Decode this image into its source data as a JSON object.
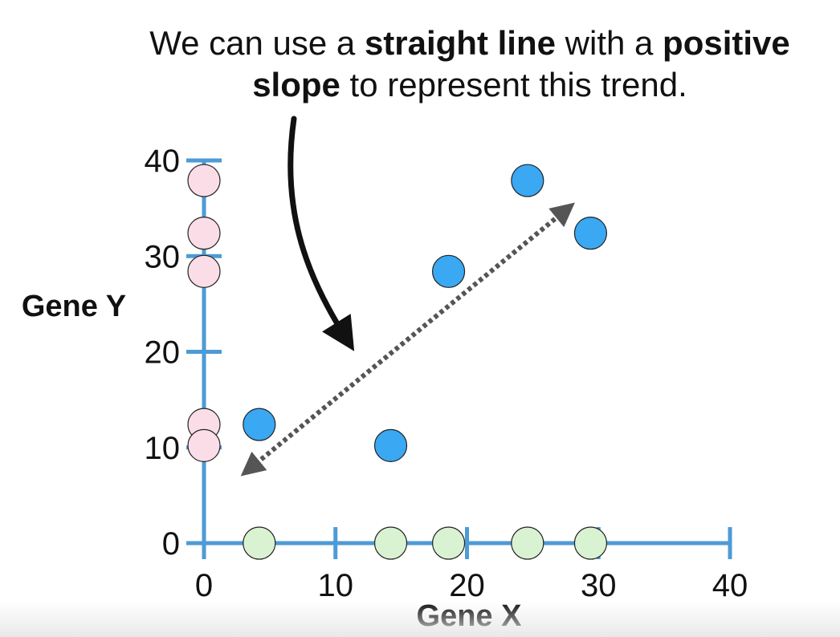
{
  "annotation": {
    "part1": "We can use a ",
    "bold1": "straight line",
    "part2": " with a ",
    "bold2": "positive",
    "part3": "slope",
    "part4": " to represent this trend."
  },
  "chart_data": {
    "type": "scatter",
    "xlabel": "Gene X",
    "ylabel": "Gene Y",
    "xlim": [
      0,
      40
    ],
    "ylim": [
      0,
      40
    ],
    "x_ticks": [
      0,
      10,
      20,
      30,
      40
    ],
    "y_ticks": [
      0,
      10,
      20,
      30,
      40
    ],
    "grid": false,
    "colors": {
      "axis": "#4d9bd6",
      "points": "#3aa8f2",
      "x_projection": "#d9f2d2",
      "y_projection": "#fbdde8",
      "arrow": "#111111",
      "trend": "#555555"
    },
    "series": [
      {
        "x": [
          4.2,
          14.2,
          18.6,
          24.6,
          29.4
        ],
        "y": [
          12.4,
          10.2,
          28.4,
          37.9,
          32.4
        ]
      }
    ],
    "trend_arrow": {
      "from": [
        3.5,
        7.8
      ],
      "to": [
        27.5,
        34.8
      ]
    }
  }
}
